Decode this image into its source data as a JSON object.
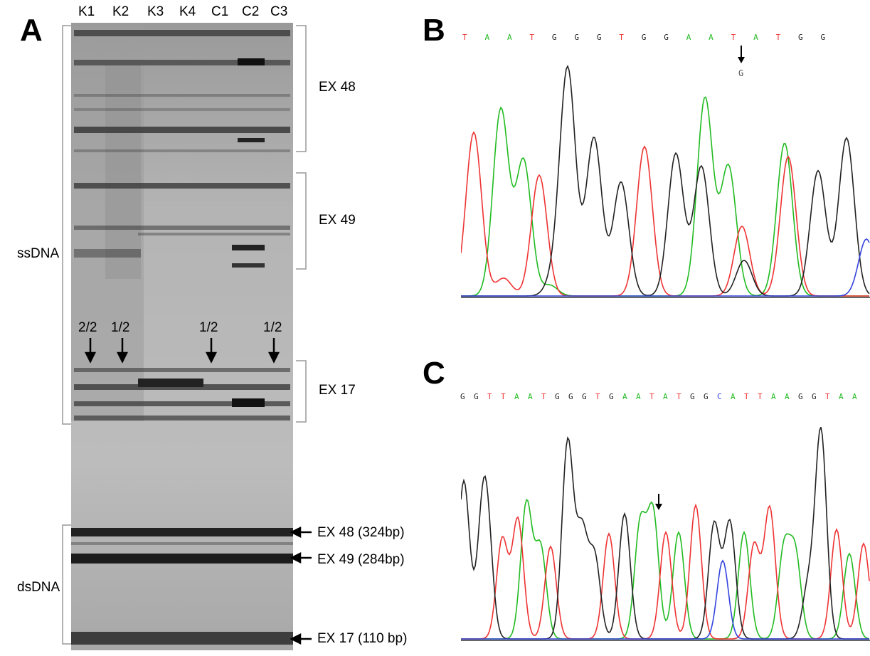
{
  "panels": {
    "a": "A",
    "b": "B",
    "c": "C"
  },
  "gel": {
    "lanes": [
      "K1",
      "K2",
      "K3",
      "K4",
      "C1",
      "C2",
      "C3"
    ],
    "side_labels": {
      "ssdna": "ssDNA",
      "dsdna": "dsDNA"
    },
    "region_labels": {
      "ex48": "EX 48",
      "ex49": "EX 49",
      "ex17": "EX 17"
    },
    "ratios": [
      "2/2",
      "1/2",
      "1/2",
      "1/2"
    ],
    "ds_bands": {
      "ex48": "EX 48 (324bp)",
      "ex49": "EX 49 (284bp)",
      "ex17": "EX 17 (110 bp)"
    }
  },
  "chrom_b": {
    "bases": [
      "T",
      "A",
      "A",
      "T",
      "G",
      "G",
      "G",
      "T",
      "G",
      "G",
      "A",
      "A",
      "T",
      "A",
      "T",
      "G",
      "G"
    ],
    "mutation_base": "G"
  },
  "chrom_c": {
    "bases": [
      "G",
      "G",
      "T",
      "T",
      "A",
      "A",
      "T",
      "G",
      "G",
      "G",
      "T",
      "G",
      "A",
      "A",
      "T",
      "A",
      "T",
      "G",
      "G",
      "C",
      "A",
      "T",
      "T",
      "A",
      "A",
      "G",
      "G",
      "T",
      "A",
      "A"
    ]
  },
  "colors": {
    "A": "#22bb22",
    "T": "#ee3333",
    "G": "#222222",
    "C": "#3344dd"
  }
}
